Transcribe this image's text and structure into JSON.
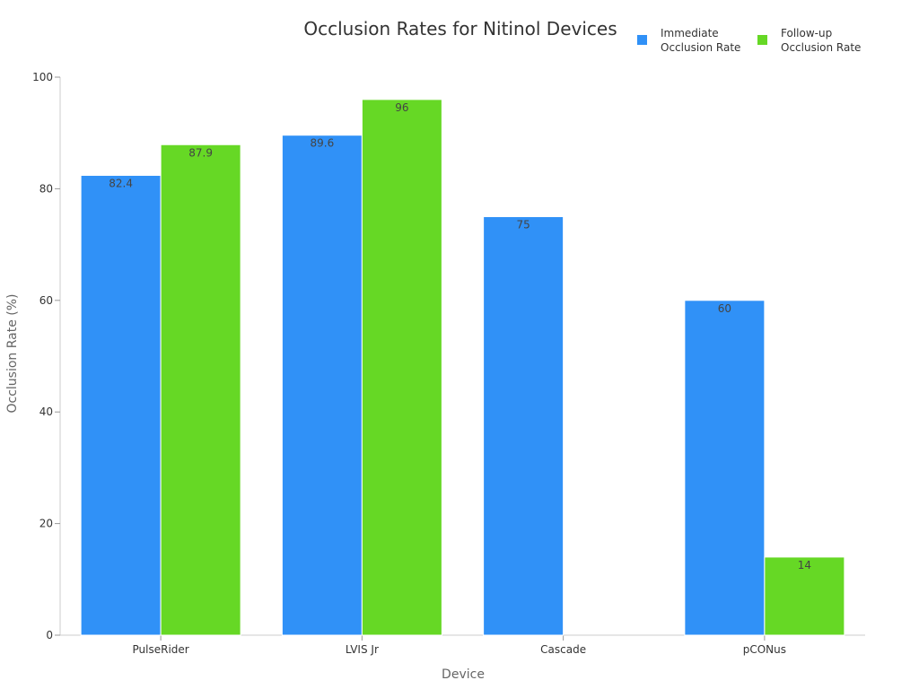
{
  "chart_data": {
    "type": "bar",
    "title": "Occlusion Rates for Nitinol Devices",
    "xlabel": "Device",
    "ylabel": "Occlusion Rate (%)",
    "ylim": [
      0,
      100
    ],
    "yticks": [
      0,
      20,
      40,
      60,
      80,
      100
    ],
    "categories": [
      "PulseRider",
      "LVIS Jr",
      "Cascade",
      "pCONus"
    ],
    "series": [
      {
        "name": "Immediate Occlusion Rate",
        "legend_lines": [
          "Immediate",
          "Occlusion Rate"
        ],
        "color": "#3091f7",
        "values": [
          82.4,
          89.6,
          75,
          60
        ]
      },
      {
        "name": "Follow-up Occlusion Rate",
        "legend_lines": [
          "Follow-up",
          "Occlusion Rate"
        ],
        "color": "#66d825",
        "values": [
          87.9,
          96,
          null,
          14
        ]
      }
    ],
    "legend_position": "top-right",
    "grid": false
  }
}
